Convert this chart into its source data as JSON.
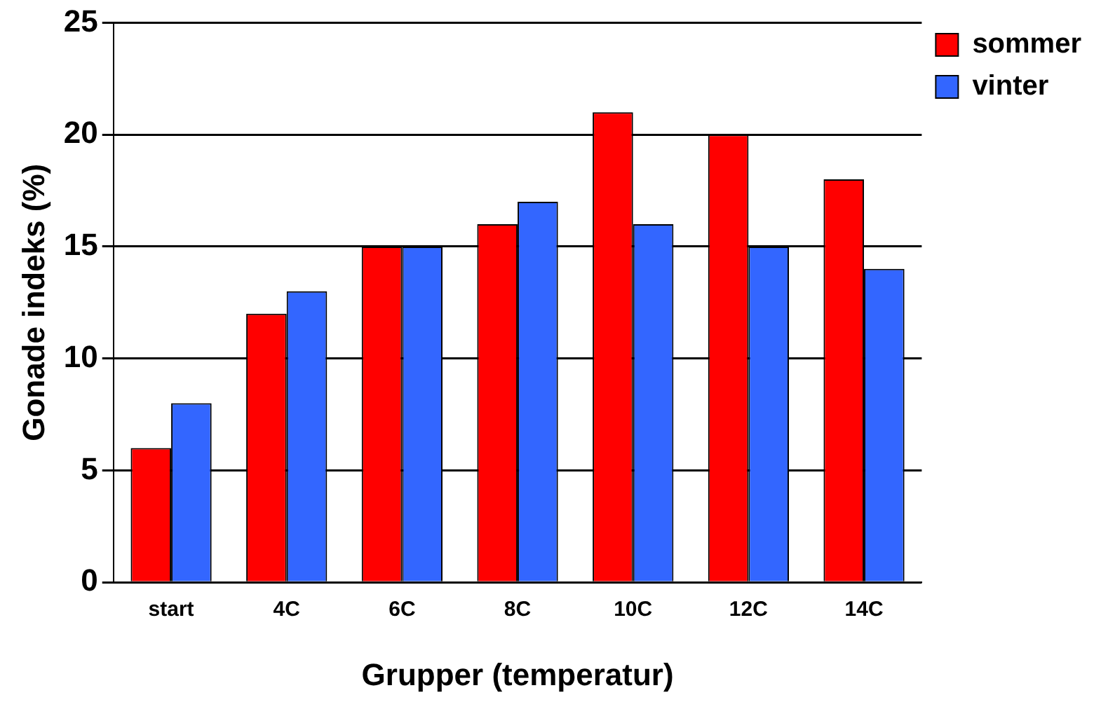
{
  "chart_data": {
    "type": "bar",
    "xlabel": "Grupper (temperatur)",
    "ylabel": "Gonade indeks (%)",
    "categories": [
      "start",
      "4C",
      "6C",
      "8C",
      "10C",
      "12C",
      "14C"
    ],
    "series": [
      {
        "name": "sommer",
        "color": "#ff0000",
        "values": [
          6,
          12,
          15,
          16,
          21,
          20,
          18
        ]
      },
      {
        "name": "vinter",
        "color": "#3366ff",
        "values": [
          8,
          13,
          15,
          17,
          16,
          15,
          14
        ]
      }
    ],
    "ylim": [
      0,
      25
    ],
    "yticks": [
      0,
      5,
      10,
      15,
      20,
      25
    ],
    "grid": "y",
    "legend": "top right"
  }
}
